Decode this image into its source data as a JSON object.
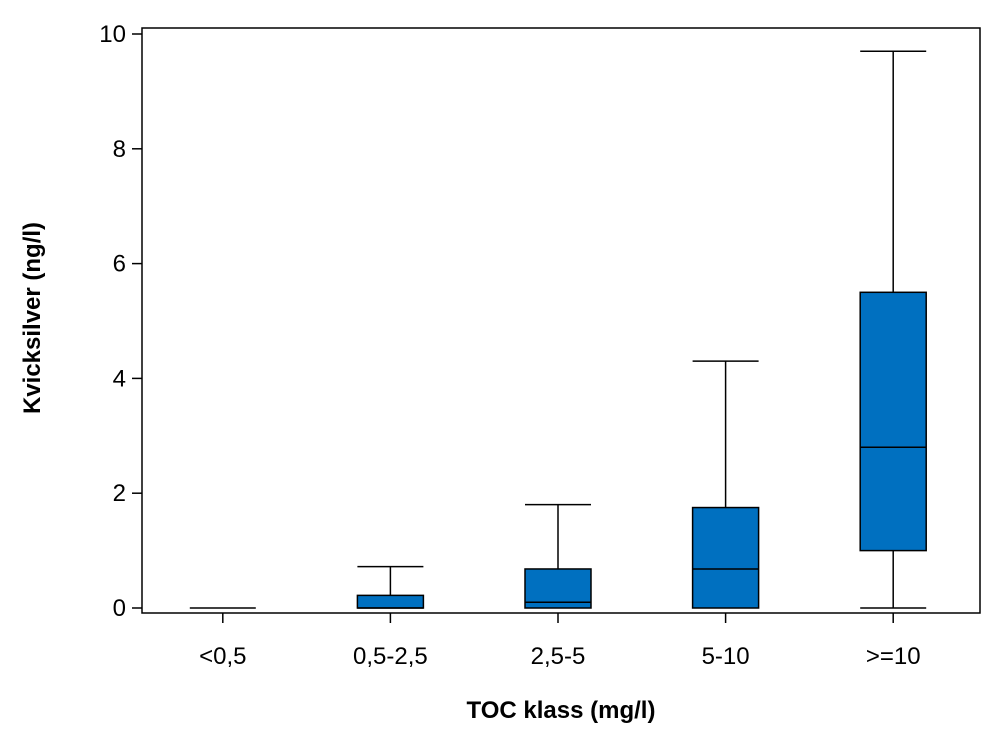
{
  "chart_data": {
    "type": "boxplot",
    "title": "",
    "xlabel": "TOC klass (mg/l)",
    "ylabel": "Kvicksilver (ng/l)",
    "ylim": [
      0,
      10
    ],
    "yticks": [
      0,
      2,
      4,
      6,
      8,
      10
    ],
    "ytick_labels": [
      "0",
      "2",
      "4",
      "6",
      "8",
      "10"
    ],
    "grid": false,
    "categories": [
      "<0,5",
      "0,5-2,5",
      "2,5-5",
      "5-10",
      ">=10"
    ],
    "boxes": [
      {
        "category": "<0,5",
        "min": 0,
        "q1": 0,
        "median": 0,
        "q3": 0,
        "max": 0
      },
      {
        "category": "0,5-2,5",
        "min": 0,
        "q1": 0,
        "median": 0,
        "q3": 0.22,
        "max": 0.72
      },
      {
        "category": "2,5-5",
        "min": 0,
        "q1": 0,
        "median": 0.1,
        "q3": 0.68,
        "max": 1.8
      },
      {
        "category": "5-10",
        "min": 0,
        "q1": 0,
        "median": 0.68,
        "q3": 1.75,
        "max": 4.3
      },
      {
        "category": ">=10",
        "min": 0,
        "q1": 1.0,
        "median": 2.8,
        "q3": 5.5,
        "max": 9.7
      }
    ],
    "colors": {
      "box_fill": "#0070C0",
      "line": "#000000"
    }
  }
}
